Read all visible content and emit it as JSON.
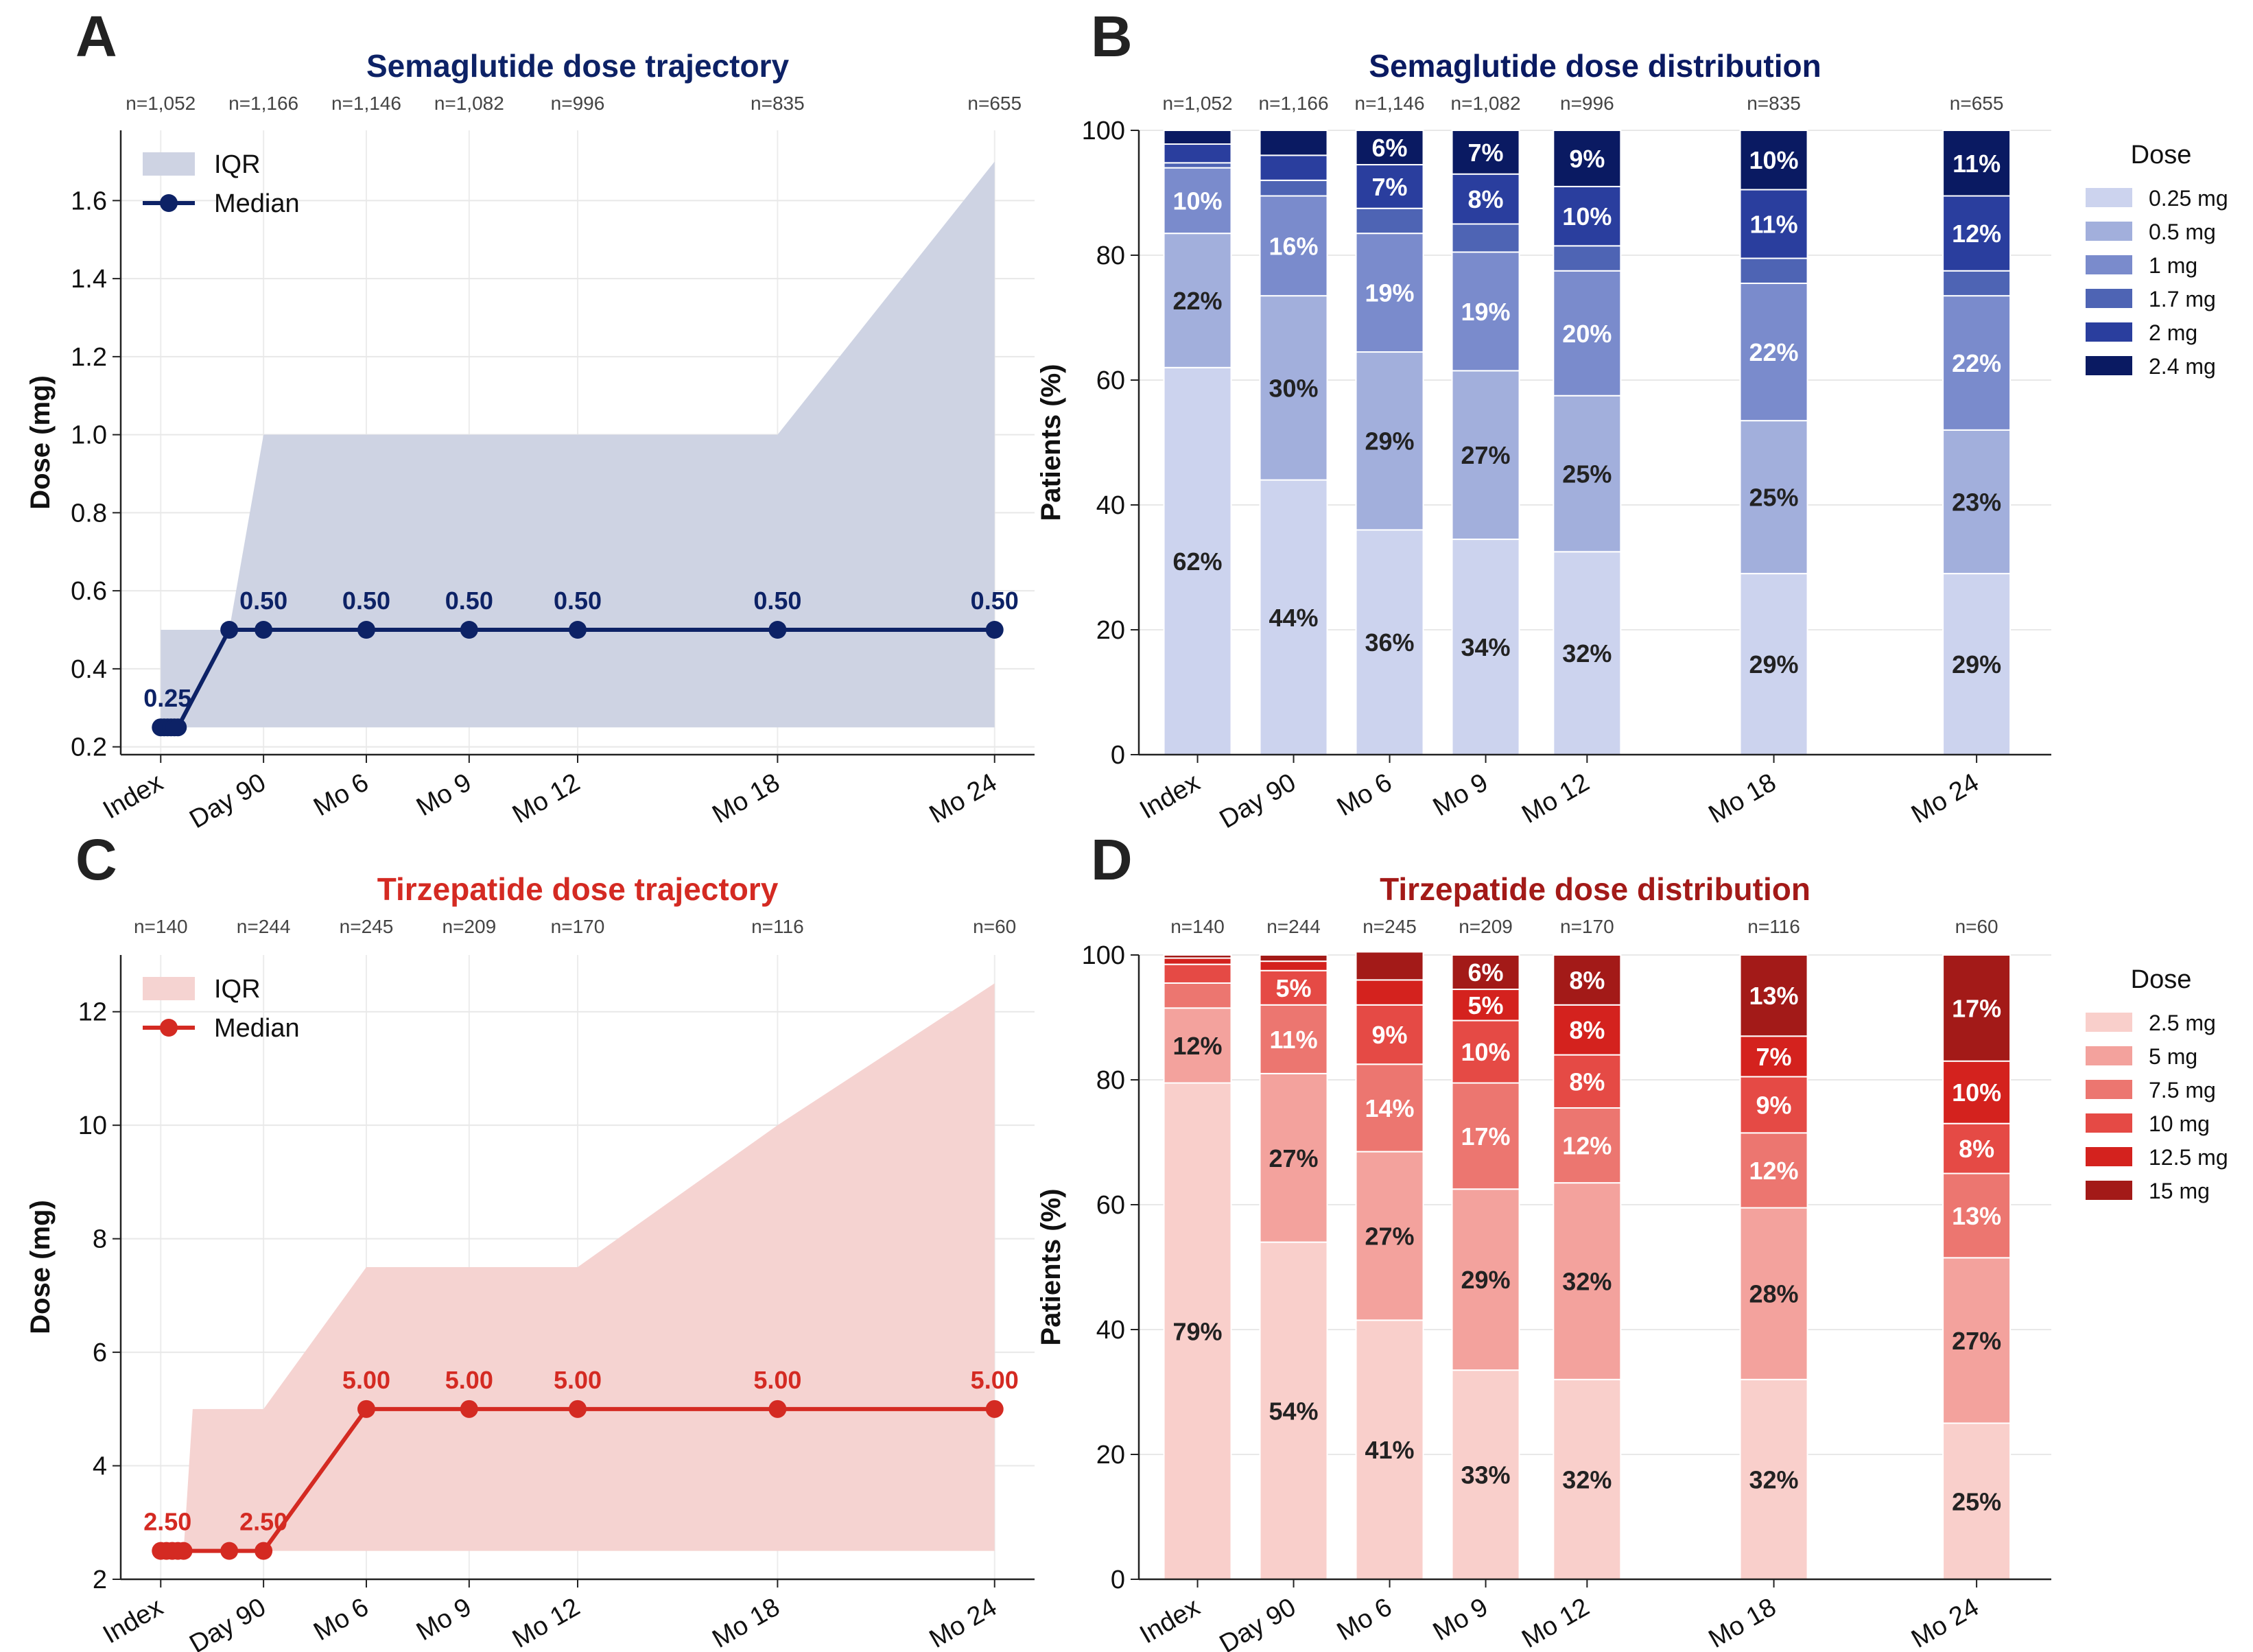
{
  "panel_letters": [
    "A",
    "B",
    "C",
    "D"
  ],
  "chart_data": [
    {
      "type": "line",
      "panel": "A",
      "title": "Semaglutide dose trajectory",
      "xlabel": "",
      "ylabel": "Dose (mg)",
      "color": "#0d2266",
      "iqr_color": "#ced3e3",
      "x_ticks": [
        "Index",
        "Day 90",
        "Mo 6",
        "Mo 9",
        "Mo 12",
        "Mo 18",
        "Mo 24"
      ],
      "n_labels": [
        "n=1,052",
        "n=1,166",
        "n=1,146",
        "n=1,082",
        "n=996",
        "n=835",
        "n=655"
      ],
      "ylim": [
        0.18,
        1.78
      ],
      "yticks": [
        0.2,
        0.4,
        0.6,
        0.8,
        1.0,
        1.2,
        1.4,
        1.6
      ],
      "ytick_labels": [
        "0.2",
        "0.4",
        "0.6",
        "0.8",
        "1.0",
        "1.2",
        "1.4",
        "1.6"
      ],
      "legend": [
        "IQR",
        "Median"
      ],
      "legend_position": "top-left",
      "series": [
        {
          "name": "Median",
          "points": [
            [
              0,
              0.25
            ],
            [
              3,
              0.25
            ],
            [
              6,
              0.25
            ],
            [
              9,
              0.25
            ],
            [
              12,
              0.25
            ],
            [
              15,
              0.25
            ],
            [
              60,
              0.5
            ],
            [
              90,
              0.5
            ],
            [
              180,
              0.5
            ],
            [
              270,
              0.5
            ],
            [
              365,
              0.5
            ],
            [
              540,
              0.5
            ],
            [
              730,
              0.5
            ]
          ],
          "point_labels": [
            {
              "x": 0,
              "y": 0.25,
              "label": "0.25"
            },
            {
              "x": 90,
              "y": 0.5,
              "label": "0.50"
            },
            {
              "x": 180,
              "y": 0.5,
              "label": "0.50"
            },
            {
              "x": 270,
              "y": 0.5,
              "label": "0.50"
            },
            {
              "x": 365,
              "y": 0.5,
              "label": "0.50"
            },
            {
              "x": 540,
              "y": 0.5,
              "label": "0.50"
            },
            {
              "x": 730,
              "y": 0.5,
              "label": "0.50"
            }
          ]
        },
        {
          "name": "IQR",
          "band": [
            [
              0,
              0.25,
              0.5
            ],
            [
              60,
              0.25,
              0.5
            ],
            [
              90,
              0.25,
              1.0
            ],
            [
              180,
              0.25,
              1.0
            ],
            [
              270,
              0.25,
              1.0
            ],
            [
              365,
              0.25,
              1.0
            ],
            [
              540,
              0.25,
              1.0
            ],
            [
              730,
              0.25,
              1.7
            ]
          ]
        }
      ]
    },
    {
      "type": "bar",
      "panel": "B",
      "title": "Semaglutide dose distribution",
      "xlabel": "",
      "ylabel": "Patients (%)",
      "categories": [
        "Index",
        "Day 90",
        "Mo 6",
        "Mo 9",
        "Mo 12",
        "Mo 18",
        "Mo 24"
      ],
      "n_labels": [
        "n=1,052",
        "n=1,166",
        "n=1,146",
        "n=1,082",
        "n=996",
        "n=835",
        "n=655"
      ],
      "ylim": [
        0,
        100
      ],
      "yticks": [
        0,
        20,
        40,
        60,
        80,
        100
      ],
      "ytick_labels": [
        "0",
        "20",
        "40",
        "60",
        "80",
        "100"
      ],
      "legend_title": "Dose",
      "legend_position": "right",
      "series": [
        {
          "name": "0.25 mg",
          "color": "#ccd3ee",
          "values": [
            62,
            44,
            36,
            34.5,
            32.5,
            29,
            29
          ],
          "labels": [
            "62%",
            "44%",
            "36%",
            "34%",
            "32%",
            "29%",
            "29%"
          ]
        },
        {
          "name": "0.5 mg",
          "color": "#a2afdc",
          "values": [
            21.5,
            29.5,
            28.5,
            27,
            25,
            24.5,
            23
          ],
          "labels": [
            "22%",
            "30%",
            "29%",
            "27%",
            "25%",
            "25%",
            "23%"
          ]
        },
        {
          "name": "1 mg",
          "color": "#7a8bcc",
          "values": [
            10.5,
            16,
            19,
            19,
            20,
            22,
            21.5
          ],
          "labels": [
            "10%",
            "16%",
            "19%",
            "19%",
            "20%",
            "22%",
            "22%"
          ]
        },
        {
          "name": "1.7 mg",
          "color": "#4e64b4",
          "values": [
            0.8,
            2.5,
            4,
            4.5,
            4,
            4,
            4
          ],
          "labels": [
            "",
            "",
            "",
            "",
            "",
            "",
            ""
          ]
        },
        {
          "name": "2 mg",
          "color": "#2a3e9e",
          "values": [
            3,
            4,
            7,
            8,
            9.5,
            11,
            12
          ],
          "labels": [
            "",
            "",
            "7%",
            "8%",
            "10%",
            "11%",
            "12%"
          ]
        },
        {
          "name": "2.4 mg",
          "color": "#0a1a62",
          "values": [
            2.2,
            4,
            5.5,
            7,
            9,
            9.5,
            10.5
          ],
          "labels": [
            "",
            "",
            "6%",
            "7%",
            "9%",
            "10%",
            "11%"
          ]
        }
      ]
    },
    {
      "type": "line",
      "panel": "C",
      "title": "Tirzepatide dose trajectory",
      "xlabel": "",
      "ylabel": "Dose (mg)",
      "color": "#d42a22",
      "iqr_color": "#f5d3d1",
      "x_ticks": [
        "Index",
        "Day 90",
        "Mo 6",
        "Mo 9",
        "Mo 12",
        "Mo 18",
        "Mo 24"
      ],
      "n_labels": [
        "n=140",
        "n=244",
        "n=245",
        "n=209",
        "n=170",
        "n=116",
        "n=60"
      ],
      "ylim": [
        2,
        13
      ],
      "yticks": [
        2,
        4,
        6,
        8,
        10,
        12
      ],
      "ytick_labels": [
        "2",
        "4",
        "6",
        "8",
        "10",
        "12"
      ],
      "legend": [
        "IQR",
        "Median"
      ],
      "legend_position": "top-left",
      "series": [
        {
          "name": "Median",
          "points": [
            [
              0,
              2.5
            ],
            [
              5,
              2.5
            ],
            [
              10,
              2.5
            ],
            [
              15,
              2.5
            ],
            [
              20,
              2.5
            ],
            [
              60,
              2.5
            ],
            [
              90,
              2.5
            ],
            [
              180,
              5
            ],
            [
              270,
              5
            ],
            [
              365,
              5
            ],
            [
              540,
              5
            ],
            [
              730,
              5
            ]
          ],
          "point_labels": [
            {
              "x": 0,
              "y": 2.5,
              "label": "2.50"
            },
            {
              "x": 90,
              "y": 2.5,
              "label": "2.50"
            },
            {
              "x": 180,
              "y": 5,
              "label": "5.00"
            },
            {
              "x": 270,
              "y": 5,
              "label": "5.00"
            },
            {
              "x": 365,
              "y": 5,
              "label": "5.00"
            },
            {
              "x": 540,
              "y": 5,
              "label": "5.00"
            },
            {
              "x": 730,
              "y": 5,
              "label": "5.00"
            }
          ]
        },
        {
          "name": "IQR",
          "band": [
            [
              0,
              2.5,
              2.5
            ],
            [
              20,
              2.5,
              2.5
            ],
            [
              28,
              2.5,
              5
            ],
            [
              90,
              2.5,
              5
            ],
            [
              180,
              2.5,
              7.5
            ],
            [
              270,
              2.5,
              7.5
            ],
            [
              365,
              2.5,
              7.5
            ],
            [
              540,
              2.5,
              10
            ],
            [
              730,
              2.5,
              12.5
            ]
          ]
        }
      ]
    },
    {
      "type": "bar",
      "panel": "D",
      "title": "Tirzepatide dose distribution",
      "xlabel": "",
      "ylabel": "Patients (%)",
      "categories": [
        "Index",
        "Day 90",
        "Mo 6",
        "Mo 9",
        "Mo 12",
        "Mo 18",
        "Mo 24"
      ],
      "n_labels": [
        "n=140",
        "n=244",
        "n=245",
        "n=209",
        "n=170",
        "n=116",
        "n=60"
      ],
      "ylim": [
        0,
        100
      ],
      "yticks": [
        0,
        20,
        40,
        60,
        80,
        100
      ],
      "ytick_labels": [
        "0",
        "20",
        "40",
        "60",
        "80",
        "100"
      ],
      "legend_title": "Dose",
      "legend_position": "right",
      "series": [
        {
          "name": "2.5 mg",
          "color": "#f9cfcb",
          "values": [
            79.5,
            54,
            41.5,
            33.5,
            32,
            32,
            25
          ],
          "labels": [
            "79%",
            "54%",
            "41%",
            "33%",
            "32%",
            "32%",
            "25%"
          ]
        },
        {
          "name": "5 mg",
          "color": "#f3a29d",
          "values": [
            12,
            27,
            27,
            29,
            31.5,
            27.5,
            26.5
          ],
          "labels": [
            "12%",
            "27%",
            "27%",
            "29%",
            "32%",
            "28%",
            "27%"
          ]
        },
        {
          "name": "7.5 mg",
          "color": "#ec7670",
          "values": [
            4,
            11,
            14,
            17,
            12,
            12,
            13.5
          ],
          "labels": [
            "",
            "11%",
            "14%",
            "17%",
            "12%",
            "12%",
            "13%"
          ]
        },
        {
          "name": "10 mg",
          "color": "#e54a45",
          "values": [
            3,
            5.5,
            9.5,
            10,
            8.5,
            9,
            8
          ],
          "labels": [
            "",
            "5%",
            "9%",
            "10%",
            "8%",
            "9%",
            "8%"
          ]
        },
        {
          "name": "12.5 mg",
          "color": "#d4221e",
          "values": [
            1,
            1.5,
            4,
            5,
            8,
            6.5,
            10
          ],
          "labels": [
            "",
            "",
            "",
            "5%",
            "8%",
            "7%",
            "10%"
          ]
        },
        {
          "name": "15 mg",
          "color": "#a31a18",
          "values": [
            0.5,
            1,
            4.5,
            5.5,
            8,
            13,
            17
          ],
          "labels": [
            "",
            "",
            "",
            "6%",
            "8%",
            "13%",
            "17%"
          ]
        }
      ]
    }
  ]
}
